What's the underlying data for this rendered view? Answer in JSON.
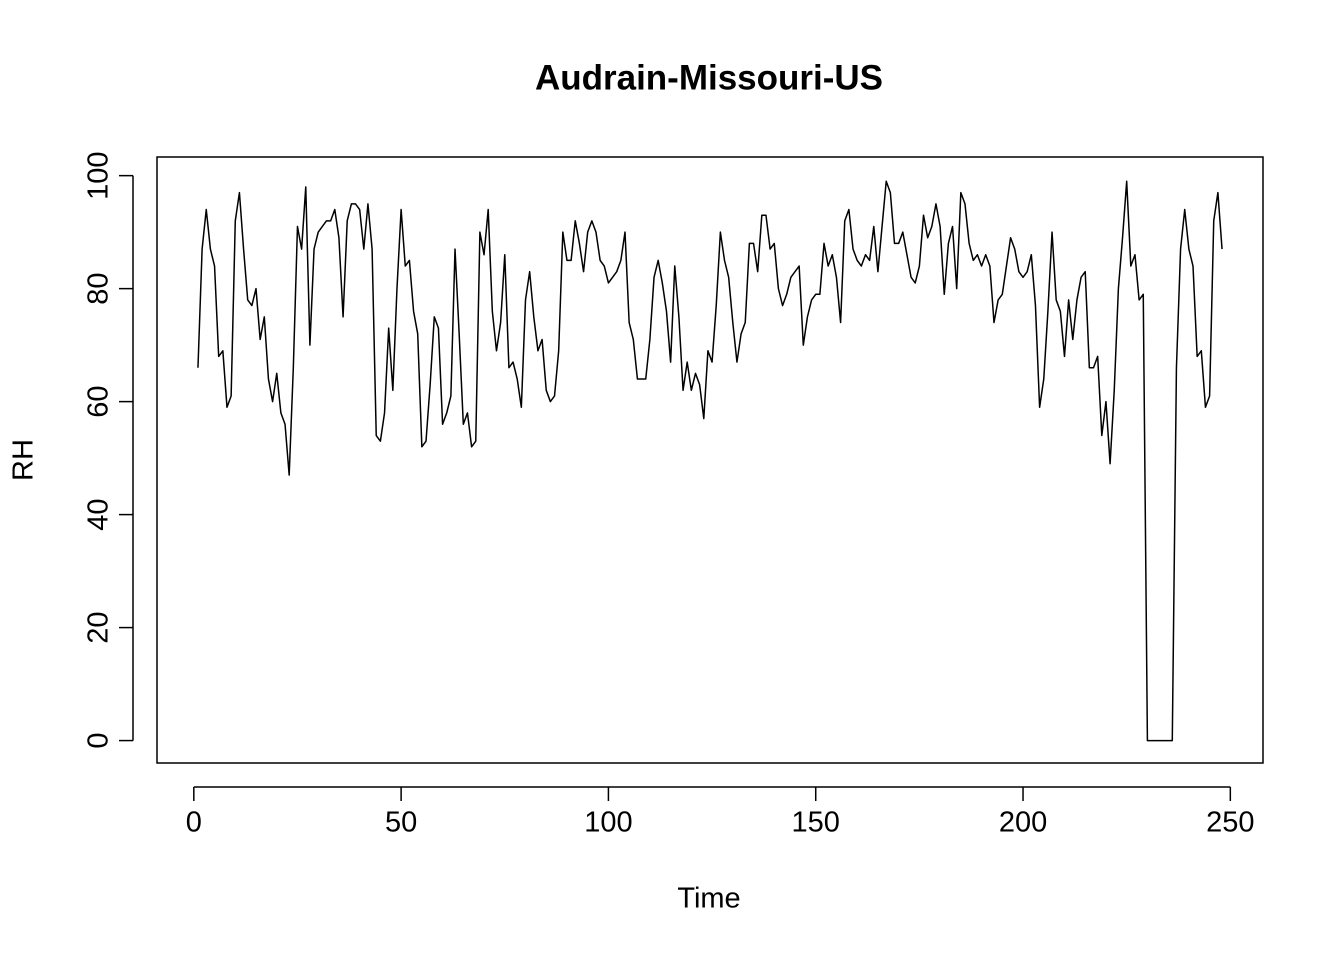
{
  "chart_data": {
    "type": "line",
    "title": "Audrain-Missouri-US",
    "x_label": "Time",
    "y_label": "RH",
    "x": [
      1,
      2,
      3,
      4,
      5,
      6,
      7,
      8,
      9,
      10,
      11,
      12,
      13,
      14,
      15,
      16,
      17,
      18,
      19,
      20,
      21,
      22,
      23,
      24,
      25,
      26,
      27,
      28,
      29,
      30,
      31,
      32,
      33,
      34,
      35,
      36,
      37,
      38,
      39,
      40,
      41,
      42,
      43,
      44,
      45,
      46,
      47,
      48,
      49,
      50,
      51,
      52,
      53,
      54,
      55,
      56,
      57,
      58,
      59,
      60,
      61,
      62,
      63,
      64,
      65,
      66,
      67,
      68,
      69,
      70,
      71,
      72,
      73,
      74,
      75,
      76,
      77,
      78,
      79,
      80,
      81,
      82,
      83,
      84,
      85,
      86,
      87,
      88,
      89,
      90,
      91,
      92,
      93,
      94,
      95,
      96,
      97,
      98,
      99,
      100,
      101,
      102,
      103,
      104,
      105,
      106,
      107,
      108,
      109,
      110,
      111,
      112,
      113,
      114,
      115,
      116,
      117,
      118,
      119,
      120,
      121,
      122,
      123,
      124,
      125,
      126,
      127,
      128,
      129,
      130,
      131,
      132,
      133,
      134,
      135,
      136,
      137,
      138,
      139,
      140,
      141,
      142,
      143,
      144,
      145,
      146,
      147,
      148,
      149,
      150,
      151,
      152,
      153,
      154,
      155,
      156,
      157,
      158,
      159,
      160,
      161,
      162,
      163,
      164,
      165,
      166,
      167,
      168,
      169,
      170,
      171,
      172,
      173,
      174,
      175,
      176,
      177,
      178,
      179,
      180,
      181,
      182,
      183,
      184,
      185,
      186,
      187,
      188,
      189,
      190,
      191,
      192,
      193,
      194,
      195,
      196,
      197,
      198,
      199,
      200,
      201,
      202,
      203,
      204,
      205,
      206,
      207,
      208,
      209,
      210,
      211,
      212,
      213,
      214,
      215,
      216,
      217,
      218,
      219,
      220,
      221,
      222,
      223,
      224,
      225,
      226,
      227,
      228,
      229,
      230,
      231,
      232,
      233,
      234,
      235,
      236,
      237,
      238,
      239,
      240,
      241,
      242,
      243,
      244,
      245,
      246,
      247,
      248
    ],
    "values": [
      66,
      87,
      94,
      87,
      84,
      68,
      69,
      59,
      61,
      92,
      97,
      87,
      78,
      77,
      80,
      71,
      75,
      64,
      60,
      65,
      58,
      56,
      47,
      66,
      91,
      87,
      98,
      70,
      87,
      90,
      91,
      92,
      92,
      94,
      89,
      75,
      92,
      95,
      95,
      94,
      87,
      95,
      87,
      54,
      53,
      58,
      73,
      62,
      80,
      94,
      84,
      85,
      76,
      72,
      52,
      53,
      63,
      75,
      73,
      56,
      58,
      61,
      87,
      72,
      56,
      58,
      52,
      53,
      90,
      86,
      94,
      76,
      69,
      74,
      86,
      66,
      67,
      64,
      59,
      78,
      83,
      75,
      69,
      71,
      62,
      60,
      61,
      69,
      90,
      85,
      85,
      92,
      88,
      83,
      90,
      92,
      90,
      85,
      84,
      81,
      82,
      83,
      85,
      90,
      74,
      71,
      64,
      64,
      64,
      71,
      82,
      85,
      81,
      76,
      67,
      84,
      75,
      62,
      67,
      62,
      65,
      63,
      57,
      69,
      67,
      77,
      90,
      85,
      82,
      74,
      67,
      72,
      74,
      88,
      88,
      83,
      93,
      93,
      87,
      88,
      80,
      77,
      79,
      82,
      83,
      84,
      70,
      75,
      78,
      79,
      79,
      88,
      84,
      86,
      82,
      74,
      92,
      94,
      87,
      85,
      84,
      86,
      85,
      91,
      83,
      91,
      99,
      97,
      88,
      88,
      90,
      86,
      82,
      81,
      84,
      93,
      89,
      91,
      95,
      91,
      79,
      88,
      91,
      80,
      97,
      95,
      88,
      85,
      86,
      84,
      86,
      84,
      74,
      78,
      79,
      84,
      89,
      87,
      83,
      82,
      83,
      86,
      77,
      59,
      64,
      76,
      90,
      78,
      76,
      68,
      78,
      71,
      78,
      82,
      83,
      66,
      66,
      68,
      54,
      60,
      49,
      62,
      80,
      89,
      99,
      84,
      86,
      78,
      79,
      0,
      0,
      0,
      0,
      0,
      0,
      0,
      66,
      87,
      94,
      87,
      84,
      68,
      69,
      59,
      61,
      92,
      97,
      87
    ],
    "color": "#000000",
    "xlim": [
      -8.88,
      257.88
    ],
    "ylim": [
      -3.97,
      103.3
    ],
    "xticks": [
      0,
      50,
      100,
      150,
      200,
      250
    ],
    "yticks": [
      0,
      20,
      40,
      60,
      80,
      100
    ]
  }
}
